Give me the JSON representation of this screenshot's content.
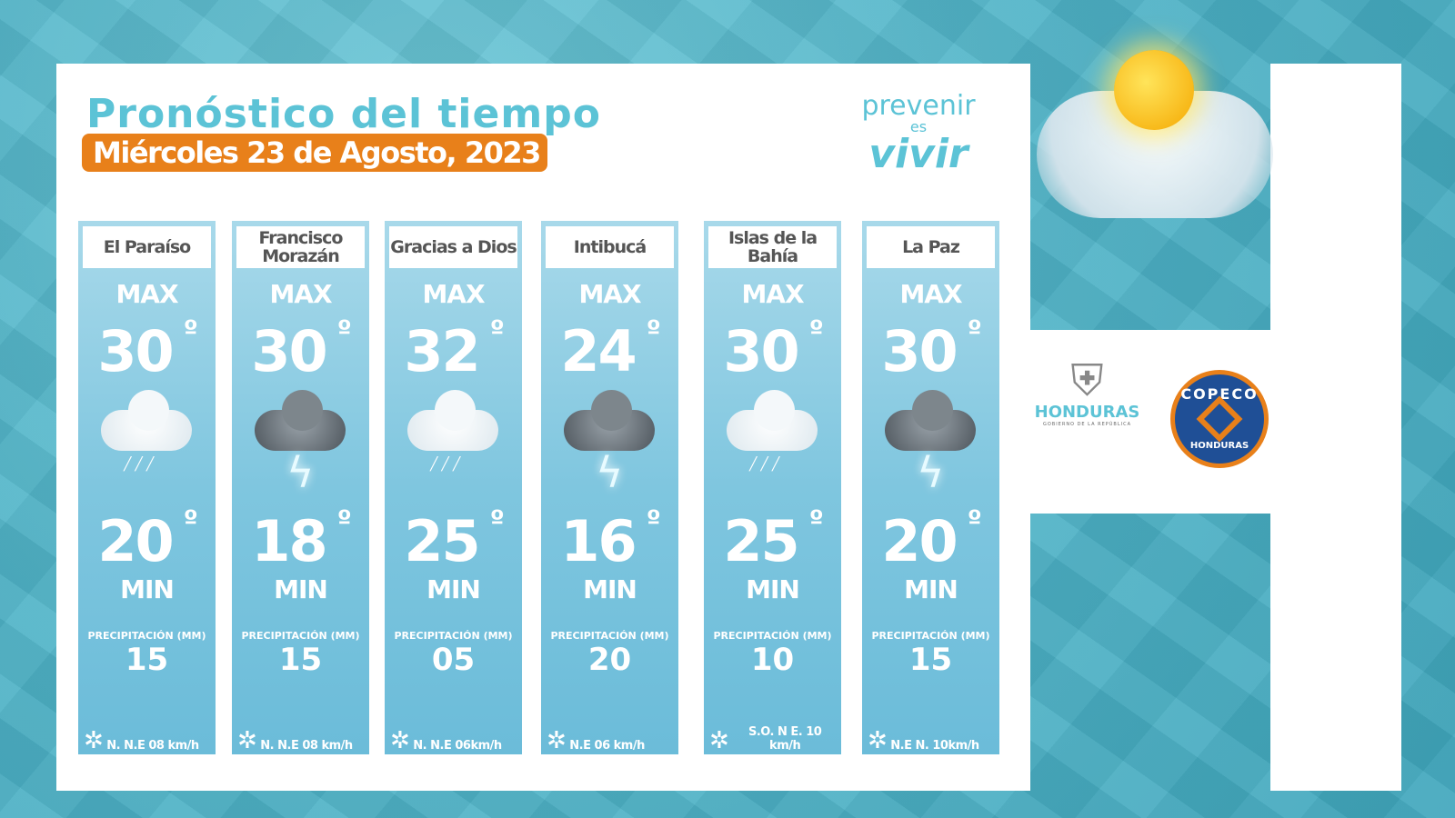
{
  "header": {
    "title": "Pronóstico del tiempo",
    "date": "Miércoles 23 de Agosto, 2023"
  },
  "slogan": {
    "line1": "prevenir",
    "line2": "es",
    "line3": "vivir"
  },
  "labels": {
    "max": "MAX",
    "min": "MIN",
    "precip": "PRECIPITACIÓN (MM)",
    "degree": "º"
  },
  "cards": [
    {
      "name": "El Paraíso",
      "max": "30",
      "min": "20",
      "precip": "15",
      "wind": "N.  N.E 08 km/h",
      "icon": "cloud-rain"
    },
    {
      "name": "Francisco Morazán",
      "max": "30",
      "min": "18",
      "precip": "15",
      "wind": "N. N.E  08 km/h",
      "icon": "thunderstorm"
    },
    {
      "name": "Gracias a Dios",
      "max": "32",
      "min": "25",
      "precip": "05",
      "wind": "N. N.E 06km/h",
      "icon": "cloud-rain"
    },
    {
      "name": "Intibucá",
      "max": "24",
      "min": "16",
      "precip": "20",
      "wind": "N.E 06 km/h",
      "icon": "thunderstorm"
    },
    {
      "name": "Islas de la Bahía",
      "max": "30",
      "min": "25",
      "precip": "10",
      "wind": "S.O.  N E. 10 km/h",
      "icon": "cloud-rain"
    },
    {
      "name": "La Paz",
      "max": "30",
      "min": "20",
      "precip": "15",
      "wind": "N.E N. 10km/h",
      "icon": "thunderstorm"
    }
  ],
  "logos": {
    "honduras": "HONDURAS",
    "honduras_sub": "GOBIERNO DE LA REPÚBLICA",
    "copeco_top": "COPECO",
    "copeco_bottom": "HONDURAS"
  },
  "colors": {
    "accent": "#5cc3d6",
    "date_bg": "#e8801a",
    "copeco_blue": "#1f4f96"
  }
}
